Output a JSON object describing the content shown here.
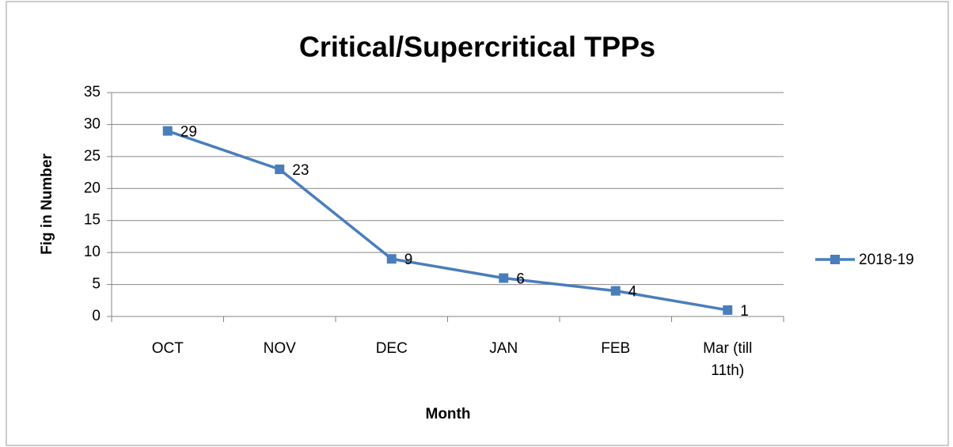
{
  "chart_data": {
    "type": "line",
    "title": "Critical/Supercritical TPPs",
    "x_label": "Month",
    "y_label": "Fig in Number",
    "categories": [
      "OCT",
      "NOV",
      "DEC",
      "JAN",
      "FEB",
      "Mar (till 11th)"
    ],
    "series": [
      {
        "name": "2018-19",
        "color": "#4a7ebb",
        "values": [
          29,
          23,
          9,
          6,
          4,
          1
        ]
      }
    ],
    "ylim": [
      0,
      35
    ],
    "yticks": [
      0,
      5,
      10,
      15,
      20,
      25,
      30,
      35
    ],
    "grid": true,
    "legend": "right"
  }
}
